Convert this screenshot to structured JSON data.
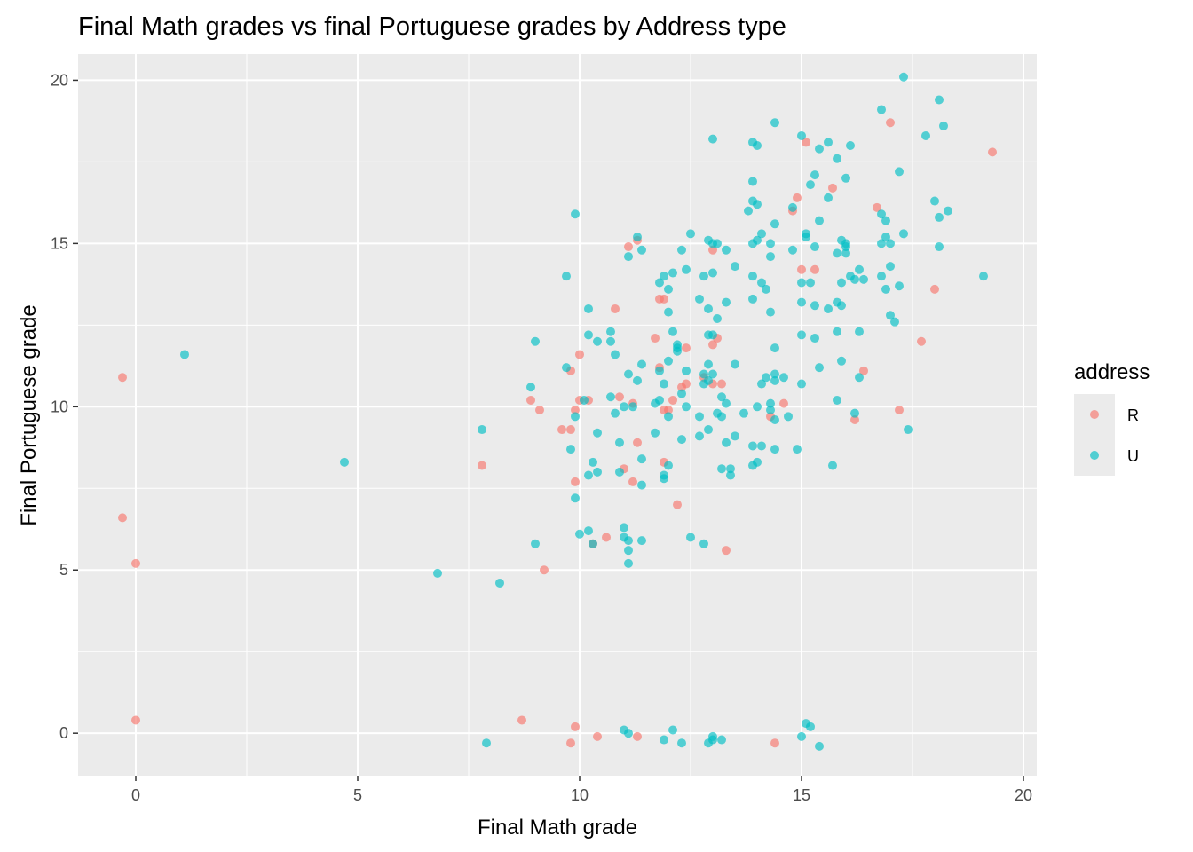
{
  "chart_data": {
    "type": "scatter",
    "title": "Final Math grades vs final Portuguese grades by Address type",
    "xlabel": "Final Math grade",
    "ylabel": "Final Portuguese grade",
    "xlim": [
      -1.3,
      20.3
    ],
    "ylim": [
      -1.3,
      20.8
    ],
    "x_ticks": [
      0,
      5,
      10,
      15,
      20
    ],
    "y_ticks": [
      0,
      5,
      10,
      15,
      20
    ],
    "x_tick_labels": [
      "0",
      "5",
      "10",
      "15",
      "20"
    ],
    "y_tick_labels": [
      "0",
      "5",
      "10",
      "15",
      "20"
    ],
    "grid": true,
    "legend": {
      "title": "address",
      "placement": "right"
    },
    "series": [
      {
        "name": "R",
        "color": "#F8766D",
        "points": [
          [
            -0.3,
            10.9
          ],
          [
            -0.3,
            6.6
          ],
          [
            0.0,
            5.2
          ],
          [
            0.0,
            0.4
          ],
          [
            7.8,
            8.2
          ],
          [
            8.7,
            0.4
          ],
          [
            8.9,
            10.2
          ],
          [
            9.1,
            9.9
          ],
          [
            9.2,
            5.0
          ],
          [
            9.6,
            9.3
          ],
          [
            9.8,
            9.3
          ],
          [
            9.8,
            -0.3
          ],
          [
            9.8,
            11.1
          ],
          [
            9.9,
            7.7
          ],
          [
            10.0,
            11.6
          ],
          [
            10.0,
            10.2
          ],
          [
            9.9,
            0.2
          ],
          [
            9.9,
            9.9
          ],
          [
            10.2,
            10.2
          ],
          [
            10.3,
            5.8
          ],
          [
            10.4,
            -0.1
          ],
          [
            10.6,
            6.0
          ],
          [
            10.8,
            13.0
          ],
          [
            10.9,
            10.3
          ],
          [
            11.0,
            8.1
          ],
          [
            11.1,
            14.9
          ],
          [
            11.2,
            10.1
          ],
          [
            11.3,
            15.1
          ],
          [
            11.2,
            7.7
          ],
          [
            11.3,
            8.9
          ],
          [
            11.3,
            -0.1
          ],
          [
            11.7,
            12.1
          ],
          [
            11.8,
            13.3
          ],
          [
            11.8,
            11.2
          ],
          [
            11.9,
            9.9
          ],
          [
            11.9,
            13.3
          ],
          [
            11.9,
            8.3
          ],
          [
            12.0,
            9.9
          ],
          [
            12.1,
            10.2
          ],
          [
            12.2,
            7.0
          ],
          [
            12.3,
            10.6
          ],
          [
            12.4,
            10.7
          ],
          [
            12.4,
            11.8
          ],
          [
            12.8,
            10.9
          ],
          [
            13.0,
            11.9
          ],
          [
            13.0,
            14.8
          ],
          [
            13.0,
            10.7
          ],
          [
            13.1,
            12.1
          ],
          [
            13.2,
            10.7
          ],
          [
            13.3,
            5.6
          ],
          [
            14.3,
            9.7
          ],
          [
            14.4,
            -0.3
          ],
          [
            14.6,
            10.1
          ],
          [
            14.8,
            16.0
          ],
          [
            14.9,
            16.4
          ],
          [
            15.0,
            14.2
          ],
          [
            15.1,
            18.1
          ],
          [
            15.3,
            14.2
          ],
          [
            15.7,
            16.7
          ],
          [
            16.2,
            9.6
          ],
          [
            16.4,
            11.1
          ],
          [
            16.7,
            16.1
          ],
          [
            17.0,
            18.7
          ],
          [
            17.2,
            9.9
          ],
          [
            17.7,
            12.0
          ],
          [
            18.0,
            13.6
          ],
          [
            19.3,
            17.8
          ]
        ]
      },
      {
        "name": "U",
        "color": "#00BFC4",
        "points": [
          [
            1.1,
            11.6
          ],
          [
            4.7,
            8.3
          ],
          [
            6.8,
            4.9
          ],
          [
            7.8,
            9.3
          ],
          [
            7.9,
            -0.3
          ],
          [
            8.2,
            4.6
          ],
          [
            8.9,
            10.6
          ],
          [
            9.0,
            12.0
          ],
          [
            9.0,
            5.8
          ],
          [
            9.7,
            14.0
          ],
          [
            9.7,
            11.2
          ],
          [
            9.8,
            8.7
          ],
          [
            9.9,
            15.9
          ],
          [
            9.9,
            7.2
          ],
          [
            9.9,
            9.7
          ],
          [
            10.0,
            6.1
          ],
          [
            10.1,
            10.2
          ],
          [
            10.2,
            13.0
          ],
          [
            10.2,
            12.2
          ],
          [
            10.2,
            7.9
          ],
          [
            10.2,
            6.2
          ],
          [
            10.3,
            8.3
          ],
          [
            10.3,
            5.8
          ],
          [
            10.4,
            12.0
          ],
          [
            10.4,
            9.2
          ],
          [
            10.4,
            8.0
          ],
          [
            10.7,
            12.3
          ],
          [
            10.7,
            12.0
          ],
          [
            10.7,
            10.3
          ],
          [
            10.8,
            11.6
          ],
          [
            10.8,
            9.8
          ],
          [
            10.9,
            8.0
          ],
          [
            10.9,
            8.9
          ],
          [
            11.0,
            10.0
          ],
          [
            11.0,
            6.3
          ],
          [
            11.0,
            6.0
          ],
          [
            11.1,
            14.6
          ],
          [
            11.1,
            11.0
          ],
          [
            11.1,
            5.9
          ],
          [
            11.1,
            5.6
          ],
          [
            11.1,
            5.2
          ],
          [
            11.2,
            10.0
          ],
          [
            11.3,
            10.8
          ],
          [
            11.3,
            15.2
          ],
          [
            11.4,
            14.8
          ],
          [
            11.4,
            11.3
          ],
          [
            11.4,
            8.4
          ],
          [
            11.4,
            7.6
          ],
          [
            11.4,
            5.9
          ],
          [
            11.0,
            0.1
          ],
          [
            11.1,
            0.0
          ],
          [
            11.7,
            9.2
          ],
          [
            11.7,
            10.1
          ],
          [
            11.8,
            11.1
          ],
          [
            11.8,
            13.8
          ],
          [
            11.8,
            10.2
          ],
          [
            11.9,
            10.7
          ],
          [
            11.9,
            14.0
          ],
          [
            11.9,
            7.8
          ],
          [
            11.9,
            7.9
          ],
          [
            12.0,
            11.4
          ],
          [
            12.0,
            13.6
          ],
          [
            12.0,
            12.9
          ],
          [
            12.0,
            9.7
          ],
          [
            12.0,
            8.2
          ],
          [
            11.9,
            -0.2
          ],
          [
            12.1,
            0.1
          ],
          [
            12.1,
            12.3
          ],
          [
            12.1,
            14.1
          ],
          [
            12.2,
            11.8
          ],
          [
            12.2,
            11.9
          ],
          [
            12.2,
            11.7
          ],
          [
            12.3,
            10.4
          ],
          [
            12.3,
            9.0
          ],
          [
            12.3,
            -0.3
          ],
          [
            12.3,
            14.8
          ],
          [
            12.4,
            11.1
          ],
          [
            12.4,
            10.0
          ],
          [
            12.4,
            14.2
          ],
          [
            12.5,
            15.3
          ],
          [
            12.5,
            6.0
          ],
          [
            12.7,
            13.3
          ],
          [
            12.7,
            9.1
          ],
          [
            12.7,
            9.7
          ],
          [
            12.8,
            11.0
          ],
          [
            12.8,
            10.7
          ],
          [
            12.8,
            14.0
          ],
          [
            12.8,
            5.8
          ],
          [
            12.9,
            11.3
          ],
          [
            12.9,
            15.1
          ],
          [
            12.9,
            13.0
          ],
          [
            12.9,
            12.2
          ],
          [
            12.9,
            10.8
          ],
          [
            12.9,
            9.3
          ],
          [
            12.9,
            -0.3
          ],
          [
            13.0,
            18.2
          ],
          [
            13.0,
            15.0
          ],
          [
            13.0,
            14.1
          ],
          [
            13.0,
            12.2
          ],
          [
            13.0,
            11.0
          ],
          [
            13.0,
            -0.1
          ],
          [
            13.0,
            -0.2
          ],
          [
            13.1,
            12.7
          ],
          [
            13.1,
            15.0
          ],
          [
            13.1,
            9.8
          ],
          [
            13.2,
            10.3
          ],
          [
            13.2,
            9.7
          ],
          [
            13.2,
            8.1
          ],
          [
            13.2,
            -0.2
          ],
          [
            13.3,
            14.8
          ],
          [
            13.3,
            13.2
          ],
          [
            13.3,
            10.1
          ],
          [
            13.3,
            8.9
          ],
          [
            13.4,
            8.1
          ],
          [
            13.4,
            7.9
          ],
          [
            13.5,
            14.3
          ],
          [
            13.5,
            11.3
          ],
          [
            13.5,
            9.1
          ],
          [
            13.7,
            9.8
          ],
          [
            13.8,
            16.0
          ],
          [
            13.9,
            18.1
          ],
          [
            13.9,
            16.9
          ],
          [
            13.9,
            16.3
          ],
          [
            13.9,
            15.0
          ],
          [
            13.9,
            14.0
          ],
          [
            13.9,
            13.3
          ],
          [
            13.9,
            8.8
          ],
          [
            13.9,
            8.2
          ],
          [
            14.0,
            16.2
          ],
          [
            14.0,
            18.0
          ],
          [
            14.0,
            15.1
          ],
          [
            14.0,
            10.0
          ],
          [
            14.0,
            8.3
          ],
          [
            14.1,
            13.8
          ],
          [
            14.1,
            10.7
          ],
          [
            14.1,
            15.3
          ],
          [
            14.1,
            8.8
          ],
          [
            14.2,
            10.9
          ],
          [
            14.2,
            13.6
          ],
          [
            14.3,
            12.9
          ],
          [
            14.3,
            15.0
          ],
          [
            14.3,
            14.6
          ],
          [
            14.3,
            10.1
          ],
          [
            14.3,
            9.9
          ],
          [
            14.4,
            18.7
          ],
          [
            14.4,
            15.6
          ],
          [
            14.4,
            11.8
          ],
          [
            14.4,
            11.0
          ],
          [
            14.4,
            10.8
          ],
          [
            14.4,
            9.6
          ],
          [
            14.4,
            8.7
          ],
          [
            14.6,
            10.9
          ],
          [
            14.7,
            9.7
          ],
          [
            14.8,
            14.8
          ],
          [
            14.8,
            16.1
          ],
          [
            14.9,
            8.7
          ],
          [
            15.0,
            18.3
          ],
          [
            15.0,
            13.8
          ],
          [
            15.0,
            13.2
          ],
          [
            15.0,
            12.2
          ],
          [
            15.0,
            10.7
          ],
          [
            15.0,
            -0.1
          ],
          [
            15.1,
            15.3
          ],
          [
            15.1,
            15.2
          ],
          [
            15.1,
            0.3
          ],
          [
            15.2,
            16.8
          ],
          [
            15.2,
            13.8
          ],
          [
            15.2,
            0.2
          ],
          [
            15.3,
            17.1
          ],
          [
            15.3,
            14.9
          ],
          [
            15.3,
            13.1
          ],
          [
            15.3,
            12.1
          ],
          [
            15.4,
            17.9
          ],
          [
            15.4,
            15.7
          ],
          [
            15.4,
            11.2
          ],
          [
            15.4,
            -0.4
          ],
          [
            15.6,
            18.1
          ],
          [
            15.6,
            16.4
          ],
          [
            15.6,
            13.0
          ],
          [
            15.7,
            8.2
          ],
          [
            15.8,
            17.6
          ],
          [
            15.8,
            14.7
          ],
          [
            15.8,
            13.2
          ],
          [
            15.8,
            12.3
          ],
          [
            15.8,
            10.2
          ],
          [
            15.9,
            15.1
          ],
          [
            15.9,
            13.8
          ],
          [
            15.9,
            11.4
          ],
          [
            15.9,
            13.1
          ],
          [
            16.0,
            17.0
          ],
          [
            16.0,
            14.9
          ],
          [
            16.0,
            15.0
          ],
          [
            16.0,
            14.7
          ],
          [
            16.1,
            18.0
          ],
          [
            16.1,
            14.0
          ],
          [
            16.2,
            13.9
          ],
          [
            16.2,
            9.8
          ],
          [
            16.3,
            14.2
          ],
          [
            16.3,
            12.3
          ],
          [
            16.3,
            10.9
          ],
          [
            16.4,
            13.9
          ],
          [
            16.8,
            19.1
          ],
          [
            16.8,
            15.0
          ],
          [
            16.8,
            15.9
          ],
          [
            16.8,
            14.0
          ],
          [
            16.9,
            15.2
          ],
          [
            16.9,
            15.7
          ],
          [
            16.9,
            13.6
          ],
          [
            17.0,
            15.0
          ],
          [
            17.0,
            14.3
          ],
          [
            17.0,
            12.8
          ],
          [
            17.1,
            12.6
          ],
          [
            17.2,
            17.2
          ],
          [
            17.2,
            13.7
          ],
          [
            17.3,
            20.1
          ],
          [
            17.3,
            15.3
          ],
          [
            17.4,
            9.3
          ],
          [
            17.8,
            18.3
          ],
          [
            18.0,
            16.3
          ],
          [
            18.1,
            19.4
          ],
          [
            18.1,
            15.8
          ],
          [
            18.1,
            14.9
          ],
          [
            18.2,
            18.6
          ],
          [
            18.3,
            16.0
          ],
          [
            19.1,
            14.0
          ]
        ]
      }
    ]
  }
}
